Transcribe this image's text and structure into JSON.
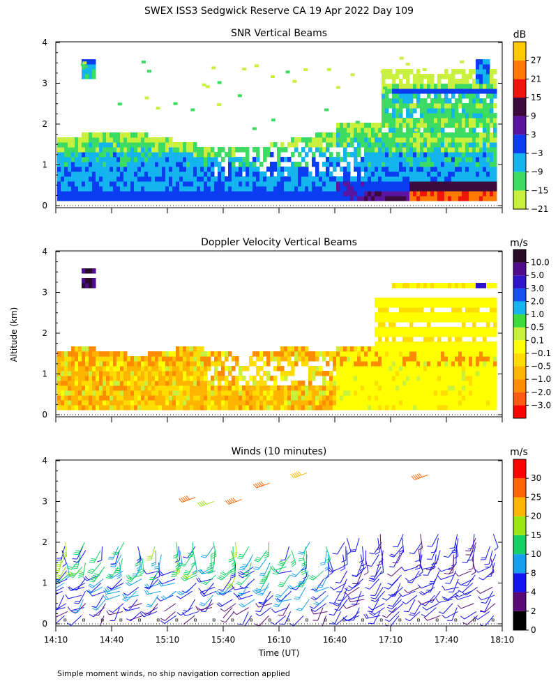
{
  "figure_title": "SWEX ISS3 Sedgwick Reserve CA  19 Apr 2022 Day 109",
  "shared_ylabel": "Altitude (km)",
  "shared_xlabel": "Time (UT)",
  "footnote": "Simple moment winds, no ship navigation correction applied",
  "x_ticks": [
    "14:10",
    "14:40",
    "15:10",
    "15:40",
    "16:10",
    "16:40",
    "17:10",
    "17:40",
    "18:10"
  ],
  "y_ticks": [
    "0",
    "1",
    "2",
    "3",
    "4"
  ],
  "colors": {
    "snr": [
      "#c8f03c",
      "#3cdc64",
      "#14b4f0",
      "#0a3cf0",
      "#5a14a0",
      "#3c0a3c",
      "#f0140a",
      "#ff7800",
      "#ffc800"
    ],
    "doppler": [
      "#ff0000",
      "#ff5a14",
      "#ff8c00",
      "#ffb400",
      "#ffdc00",
      "#ffff00",
      "#c8f03c",
      "#3cdc3c",
      "#14b4f0",
      "#1450f0",
      "#2d14c8",
      "#500a8c",
      "#280a28"
    ],
    "winds": [
      "#000000",
      "#5a0a78",
      "#1414f0",
      "#14a0f0",
      "#14d264",
      "#9be614",
      "#ffb400",
      "#ff6400",
      "#ff0000"
    ]
  },
  "chart_data": [
    {
      "type": "heatmap",
      "title": "SNR Vertical Beams",
      "xlabel": "",
      "ylabel": "Altitude (km)",
      "xlim": [
        "14:10",
        "18:10"
      ],
      "ylim": [
        0,
        4
      ],
      "colorbar_unit": "dB",
      "colorbar_labels": [
        "27",
        "21",
        "15",
        "9",
        "3",
        "−3",
        "−9",
        "−15",
        "−21"
      ],
      "colorbar_levels": [
        -21,
        -15,
        -9,
        -3,
        3,
        9,
        15,
        21,
        27
      ]
    },
    {
      "type": "heatmap",
      "title": "Doppler Velocity Vertical Beams",
      "xlabel": "",
      "ylabel": "Altitude (km)",
      "xlim": [
        "14:10",
        "18:10"
      ],
      "ylim": [
        0,
        4
      ],
      "colorbar_unit": "m/s",
      "colorbar_labels": [
        "10.0",
        "5.0",
        "3.0",
        "2.0",
        "1.0",
        "0.5",
        "0.1",
        "−0.1",
        "−0.5",
        "−1.0",
        "−2.0",
        "−3.0"
      ],
      "colorbar_levels": [
        -3.0,
        -2.0,
        -1.0,
        -0.5,
        -0.1,
        0.1,
        0.5,
        1.0,
        2.0,
        3.0,
        5.0,
        10.0
      ]
    },
    {
      "type": "scatter",
      "title": "Winds (10 minutes)",
      "xlabel": "Time (UT)",
      "ylabel": "Altitude (km)",
      "xlim": [
        "14:10",
        "18:10"
      ],
      "ylim": [
        0,
        4
      ],
      "colorbar_unit": "m/s",
      "colorbar_labels": [
        "30",
        "25",
        "20",
        "15",
        "10",
        "8",
        "4",
        "2",
        "0"
      ],
      "colorbar_levels": [
        0,
        2,
        4,
        8,
        10,
        15,
        20,
        25,
        30
      ],
      "profile_times_min_after_1410": [
        5,
        15,
        25,
        35,
        45,
        55,
        65,
        75,
        85,
        95,
        105,
        115,
        125,
        135,
        145,
        155,
        165,
        175,
        185,
        195,
        205,
        215,
        225,
        235
      ],
      "upper_barbs": [
        {
          "time_min": 75,
          "alt_km": 3.1,
          "speed": 27
        },
        {
          "time_min": 85,
          "alt_km": 3.0,
          "speed": 18
        },
        {
          "time_min": 100,
          "alt_km": 3.05,
          "speed": 27
        },
        {
          "time_min": 115,
          "alt_km": 3.45,
          "speed": 29
        },
        {
          "time_min": 135,
          "alt_km": 3.7,
          "speed": 23
        },
        {
          "time_min": 200,
          "alt_km": 3.65,
          "speed": 29
        }
      ]
    }
  ]
}
